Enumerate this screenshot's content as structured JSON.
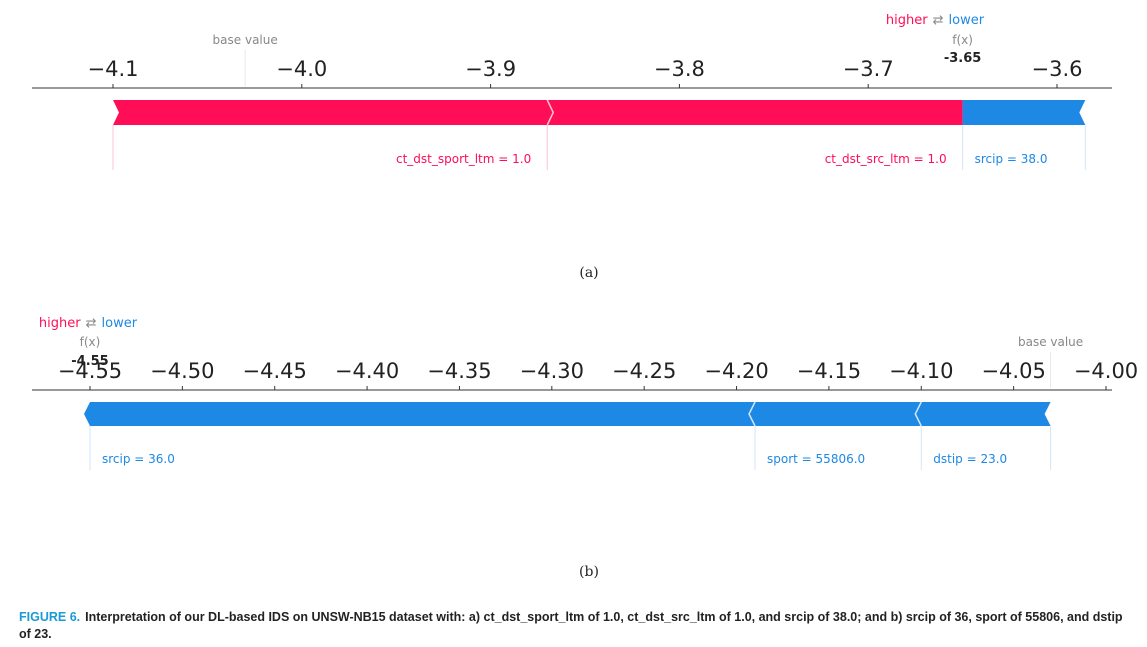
{
  "colors": {
    "pos": "#ff0d57",
    "neg": "#1e88e5",
    "axis": "#333333",
    "muted": "#888888"
  },
  "chart_data": [
    {
      "type": "force",
      "id": "a",
      "sublabel": "(a)",
      "higher_label": "higher",
      "lower_label": "lower",
      "swap_glyph": "⇄",
      "base_label": "base value",
      "base_value": -4.03,
      "fx_label": "f(x)",
      "fx_value": -3.65,
      "fx_text": "-3.65",
      "xlim": [
        -4.15,
        -3.57
      ],
      "ticks": [
        -4.1,
        -4.0,
        -3.9,
        -3.8,
        -3.7,
        -3.6
      ],
      "tick_labels": [
        "−4.1",
        "−4.0",
        "−3.9",
        "−3.8",
        "−3.7",
        "−3.6"
      ],
      "positive": [
        {
          "label": "ct_dst_sport_ltm = 1.0",
          "from": -4.1,
          "to": -3.87
        },
        {
          "label": "ct_dst_src_ltm = 1.0",
          "from": -3.87,
          "to": -3.65
        }
      ],
      "negative": [
        {
          "label": "srcip = 38.0",
          "from": -3.65,
          "to": -3.585
        }
      ]
    },
    {
      "type": "force",
      "id": "b",
      "sublabel": "(b)",
      "higher_label": "higher",
      "lower_label": "lower",
      "swap_glyph": "⇄",
      "base_label": "base value",
      "base_value": -4.03,
      "fx_label": "f(x)",
      "fx_value": -4.55,
      "fx_text": "-4.55",
      "xlim": [
        -4.565,
        -3.995
      ],
      "ticks": [
        -4.55,
        -4.5,
        -4.45,
        -4.4,
        -4.35,
        -4.3,
        -4.25,
        -4.2,
        -4.15,
        -4.1,
        -4.05,
        -4.0
      ],
      "tick_labels": [
        "−4.55",
        "−4.50",
        "−4.45",
        "−4.40",
        "−4.35",
        "−4.30",
        "−4.25",
        "−4.20",
        "−4.15",
        "−4.10",
        "−4.05",
        "−4.00"
      ],
      "positive": [],
      "negative": [
        {
          "label": "srcip = 36.0",
          "from": -4.55,
          "to": -4.19
        },
        {
          "label": "sport = 55806.0",
          "from": -4.19,
          "to": -4.1
        },
        {
          "label": "dstip = 23.0",
          "from": -4.1,
          "to": -4.03
        }
      ]
    }
  ],
  "caption": {
    "figure": "FIGURE 6.",
    "text": "Interpretation of our DL-based IDS on UNSW-NB15 dataset with: a) ct_dst_sport_ltm of 1.0, ct_dst_src_ltm of 1.0, and srcip of 38.0; and b) srcip of 36, sport of 55806, and dstip of 23."
  }
}
